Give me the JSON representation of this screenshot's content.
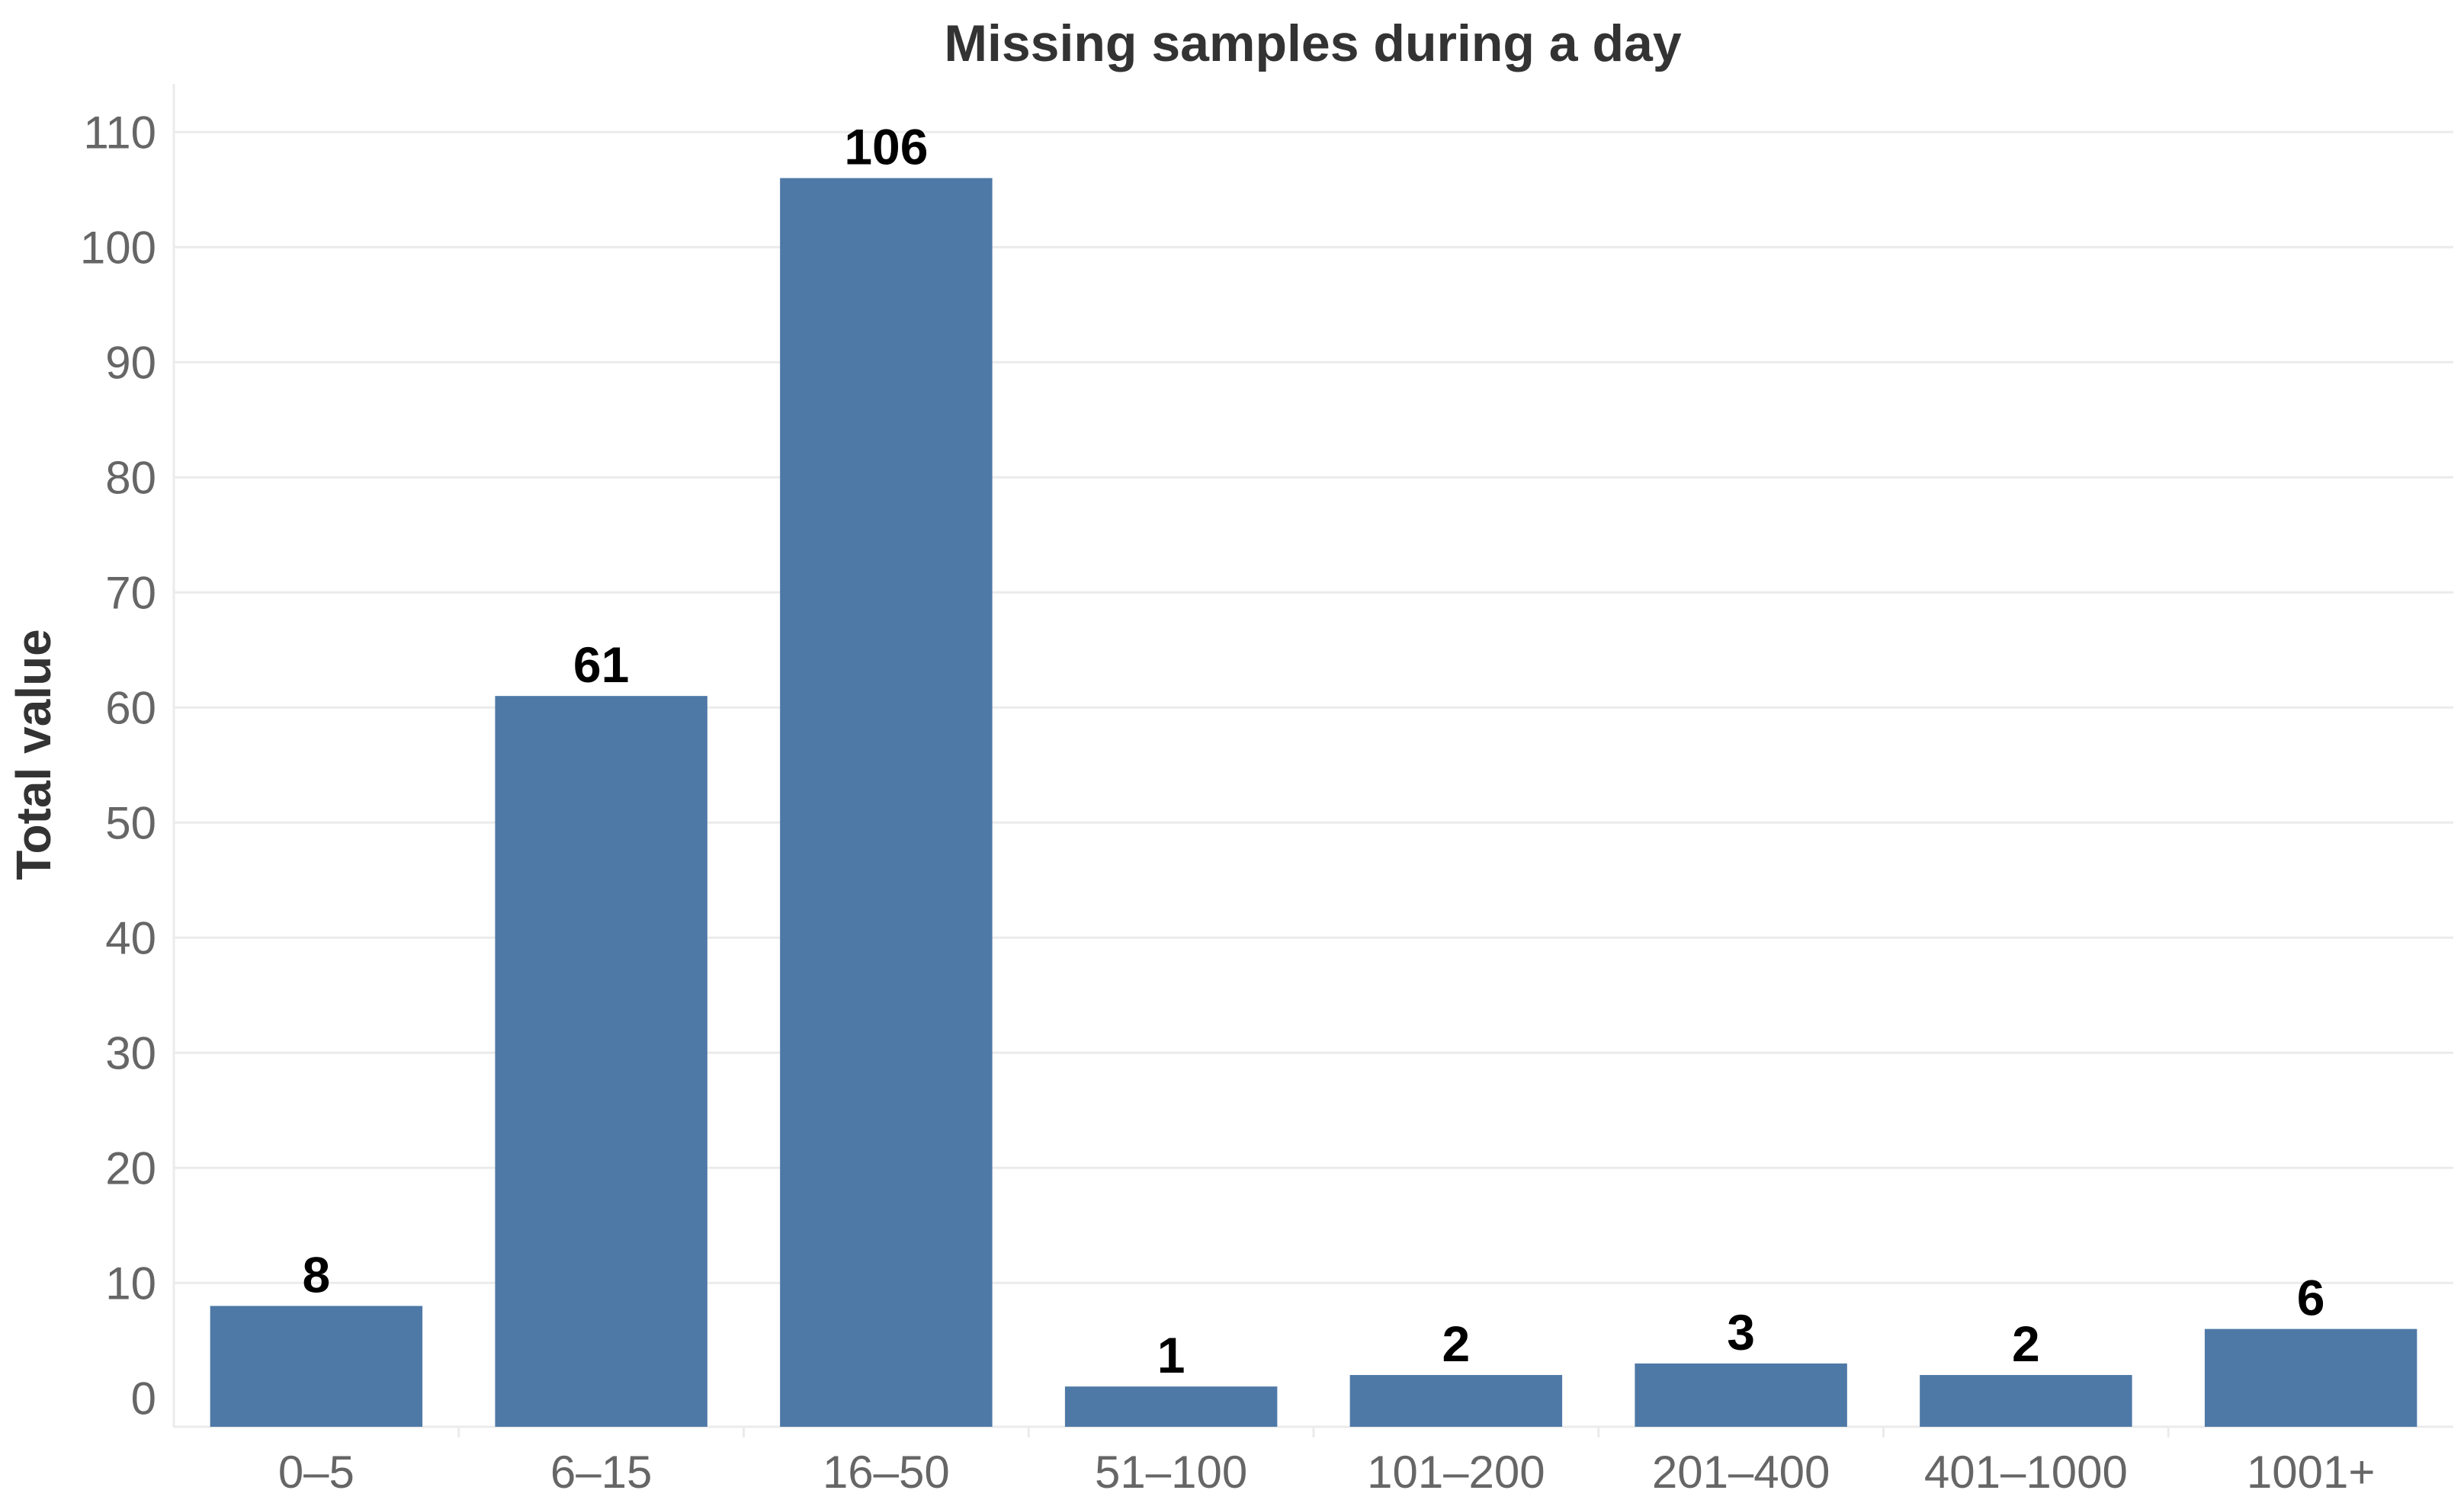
{
  "chart_data": {
    "type": "bar",
    "title": "Missing samples during a day",
    "xlabel": "",
    "ylabel": "Total value",
    "categories": [
      "0–5",
      "6–15",
      "16–50",
      "51–100",
      "101–200",
      "201–400",
      "401–1000",
      "1001+"
    ],
    "values": [
      8,
      61,
      106,
      1,
      2,
      3,
      2,
      6
    ],
    "data_labels": [
      "8",
      "61",
      "106",
      "1",
      "2",
      "3",
      "2",
      "6"
    ],
    "y_ticks": [
      0,
      10,
      20,
      30,
      40,
      50,
      60,
      70,
      80,
      90,
      100,
      110
    ],
    "ylim": [
      -2.5,
      115
    ],
    "grid": true,
    "bar_color": "#4e79a7"
  }
}
